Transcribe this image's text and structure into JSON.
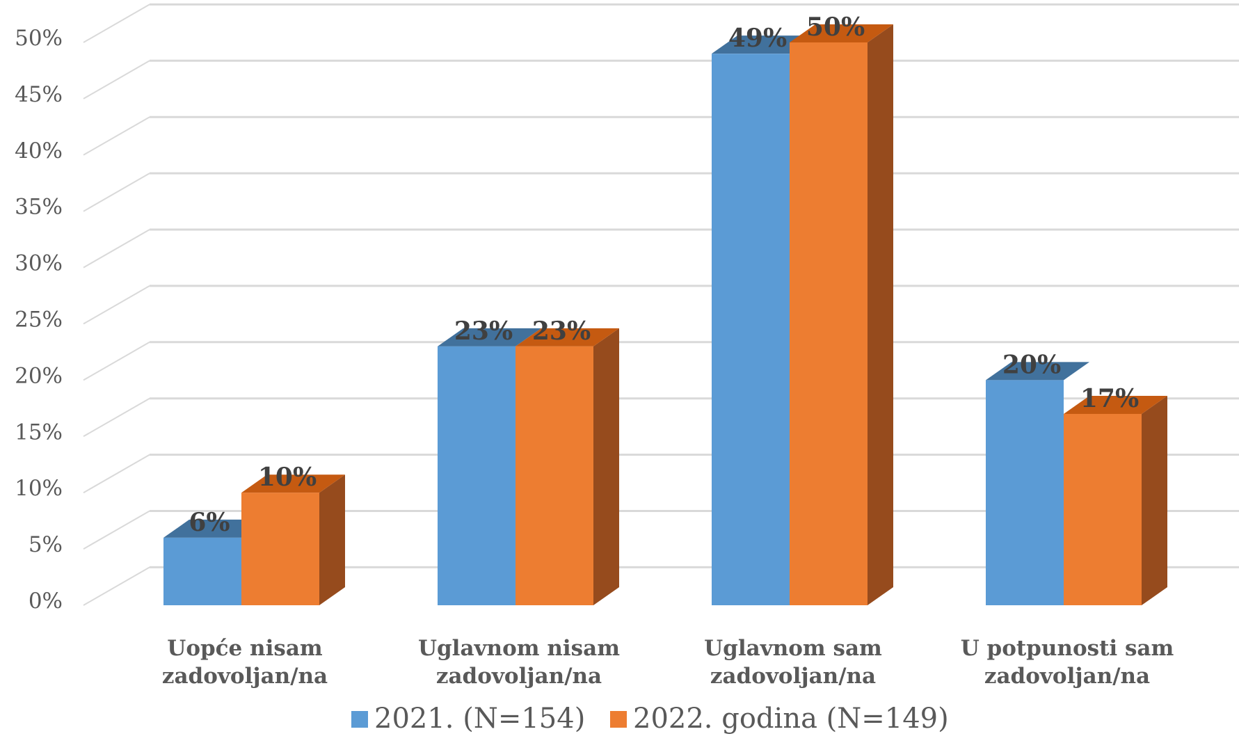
{
  "chart_data": {
    "type": "bar",
    "categories": [
      [
        "Uopće nisam",
        "zadovoljan/na"
      ],
      [
        "Uglavnom nisam",
        "zadovoljan/na"
      ],
      [
        "Uglavnom sam",
        "zadovoljan/na"
      ],
      [
        "U potpunosti sam",
        "zadovoljan/na"
      ]
    ],
    "series": [
      {
        "name": "2021. (N=154)",
        "values": [
          6,
          23,
          49,
          20
        ],
        "labels": [
          "6%",
          "23%",
          "49%",
          "20%"
        ],
        "color": "#5B9BD5",
        "top_color": "#41719C"
      },
      {
        "name": "2022. godina (N=149)",
        "values": [
          10,
          23,
          50,
          17
        ],
        "labels": [
          "10%",
          "23%",
          "50%",
          "17%"
        ],
        "color": "#ED7D31",
        "top_color": "#C55A11",
        "side_color": "#964B1D"
      }
    ],
    "yticks": [
      "0%",
      "5%",
      "10%",
      "15%",
      "20%",
      "25%",
      "30%",
      "35%",
      "40%",
      "45%",
      "50%"
    ],
    "ylim": [
      0,
      50
    ],
    "grid": true,
    "legend_position": "bottom",
    "three_d": true
  }
}
